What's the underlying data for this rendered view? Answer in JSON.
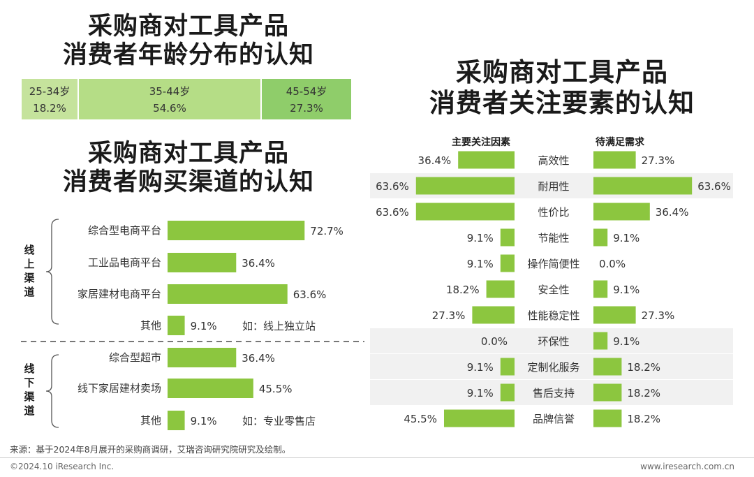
{
  "age": {
    "title_line1": "采购商对工具产品",
    "title_line2": "消费者年龄分布的认知",
    "segments": [
      {
        "label": "25-34岁",
        "value": "18.2%"
      },
      {
        "label": "35-44岁",
        "value": "54.6%"
      },
      {
        "label": "45-54岁",
        "value": "27.3%"
      }
    ]
  },
  "channel": {
    "title_line1": "采购商对工具产品",
    "title_line2": "消费者购买渠道的认知",
    "groups": [
      {
        "label_chars": [
          "线",
          "上",
          "渠",
          "道"
        ]
      },
      {
        "label_chars": [
          "线",
          "下",
          "渠",
          "道"
        ]
      }
    ]
  },
  "factor": {
    "title_line1": "采购商对工具产品",
    "title_line2": "消费者关注要素的认知",
    "left_header": "主要关注因素",
    "right_header": "待满足需求"
  },
  "chart_data": [
    {
      "type": "pie",
      "title": "采购商对工具产品消费者年龄分布的认知",
      "categories": [
        "25-34岁",
        "35-44岁",
        "45-54岁"
      ],
      "values": [
        18.2,
        54.6,
        27.3
      ],
      "colors": [
        "#c5e39c",
        "#b5dd86",
        "#8fcd6a"
      ]
    },
    {
      "type": "bar",
      "title": "采购商对工具产品消费者购买渠道的认知",
      "color": "#8cc63f",
      "groups": [
        "线上渠道",
        "线下渠道"
      ],
      "items": [
        {
          "group": 0,
          "label": "综合型电商平台",
          "value": 72.7,
          "display": "72.7%",
          "note": ""
        },
        {
          "group": 0,
          "label": "工业品电商平台",
          "value": 36.4,
          "display": "36.4%",
          "note": ""
        },
        {
          "group": 0,
          "label": "家居建材电商平台",
          "value": 63.6,
          "display": "63.6%",
          "note": ""
        },
        {
          "group": 0,
          "label": "其他",
          "value": 9.1,
          "display": "9.1%",
          "note": "如：线上独立站"
        },
        {
          "group": 1,
          "label": "综合型超市",
          "value": 36.4,
          "display": "36.4%",
          "note": ""
        },
        {
          "group": 1,
          "label": "线下家居建材卖场",
          "value": 45.5,
          "display": "45.5%",
          "note": ""
        },
        {
          "group": 1,
          "label": "其他",
          "value": 9.1,
          "display": "9.1%",
          "note": "如：专业零售店"
        }
      ]
    },
    {
      "type": "bar",
      "title": "采购商对工具产品消费者关注要素的认知",
      "color": "#8cc63f",
      "series": [
        {
          "name": "主要关注因素",
          "values": [
            36.4,
            63.6,
            63.6,
            9.1,
            9.1,
            18.2,
            27.3,
            0.0,
            9.1,
            9.1,
            45.5
          ]
        },
        {
          "name": "待满足需求",
          "values": [
            27.3,
            63.6,
            36.4,
            9.1,
            0.0,
            9.1,
            27.3,
            9.1,
            18.2,
            18.2,
            18.2
          ]
        }
      ],
      "categories": [
        "高效性",
        "耐用性",
        "性价比",
        "节能性",
        "操作简便性",
        "安全性",
        "性能稳定性",
        "环保性",
        "定制化服务",
        "售后支持",
        "品牌信誉"
      ],
      "highlighted": [
        1,
        7,
        8,
        9
      ]
    }
  ],
  "footer": {
    "source": "来源：基于2024年8月展开的采购商调研，艾瑞咨询研究院研究及绘制。",
    "copyright": "©2024.10 iResearch Inc.",
    "website": "www.iresearch.com.cn"
  }
}
